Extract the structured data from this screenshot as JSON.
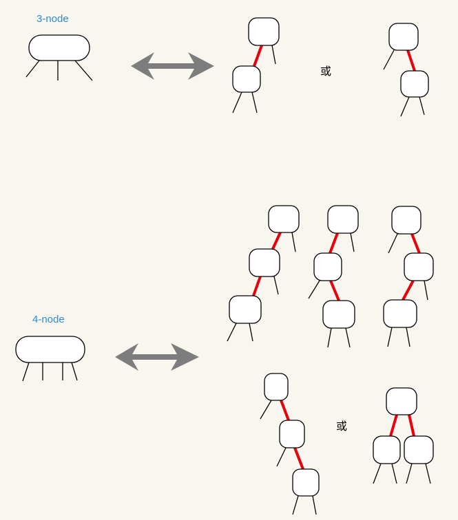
{
  "labels": {
    "three_node": "3-node",
    "four_node": "4-node",
    "or_text": "或"
  },
  "colors": {
    "background": "#f9f6f0",
    "label_blue": "#2e8bd0",
    "red_link": "#e8000b",
    "arrow_gray": "#7d7d7d"
  }
}
